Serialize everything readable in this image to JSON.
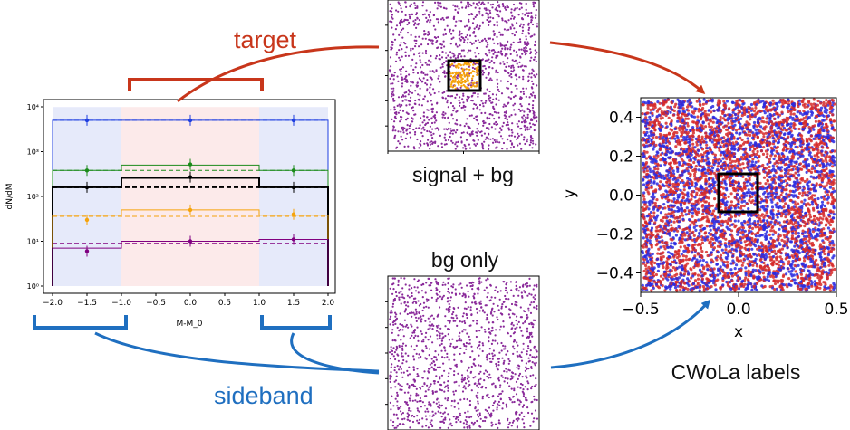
{
  "labels": {
    "target": "target",
    "sideband": "sideband",
    "signal_bg": "signal + bg",
    "bg_only": "bg only",
    "cwola": "CWoLa labels"
  },
  "colors": {
    "target_red": "#c8361b",
    "sideband_blue": "#1f6fc0",
    "scatter_purple": "#8a2a9a",
    "signal_orange": "#f5a30c",
    "label_red": "#d62a2a",
    "label_blue": "#2a2ae0"
  },
  "chart_data": [
    {
      "type": "line",
      "title": "",
      "xlabel": "M-M_0",
      "ylabel": "dN/dM",
      "xlim": [
        -2.0,
        2.0
      ],
      "ylog": true,
      "ylim_exp": [
        0,
        4
      ],
      "x_ticks": [
        "−2.0",
        "−1.5",
        "−1.0",
        "−0.5",
        "0.0",
        "0.5",
        "1.0",
        "1.5",
        "2.0"
      ],
      "y_ticks": [
        "10⁰",
        "10¹",
        "10²",
        "10³",
        "10⁴"
      ],
      "regions": [
        {
          "name": "sideband",
          "x": [
            -2.0,
            -1.0
          ],
          "color": "#dde3f8"
        },
        {
          "name": "target",
          "x": [
            -1.0,
            1.0
          ],
          "color": "#fbe3e3"
        },
        {
          "name": "sideband",
          "x": [
            1.0,
            2.0
          ],
          "color": "#dde3f8"
        }
      ],
      "series": [
        {
          "color": "#1f3fe0",
          "edges": [
            -2.0,
            -1.0,
            1.0,
            2.0
          ],
          "values": [
            5000,
            5000,
            5000
          ],
          "points_x": [
            -1.5,
            0.0,
            1.5
          ],
          "points_y": [
            5000,
            5000,
            5000
          ],
          "width": 1
        },
        {
          "color": "#1a8a1a",
          "edges": [
            -2.0,
            -1.0,
            1.0,
            2.0
          ],
          "values": [
            380,
            500,
            380
          ],
          "points_x": [
            -1.5,
            0.0,
            1.5
          ],
          "points_y": [
            380,
            520,
            380
          ],
          "width": 1
        },
        {
          "color": "#000000",
          "edges": [
            -2.0,
            -1.0,
            1.0,
            2.0
          ],
          "values": [
            160,
            260,
            160
          ],
          "points_x": [
            -1.5,
            0.0,
            1.5
          ],
          "points_y": [
            160,
            270,
            160
          ],
          "width": 2
        },
        {
          "color": "#f5a30c",
          "edges": [
            -2.0,
            -1.0,
            1.0,
            2.0
          ],
          "values": [
            38,
            50,
            38
          ],
          "points_x": [
            -1.5,
            0.0,
            1.5
          ],
          "points_y": [
            30,
            50,
            40
          ],
          "width": 1
        },
        {
          "color": "#800080",
          "edges": [
            -2.0,
            -1.0,
            1.0,
            2.0
          ],
          "values": [
            7,
            10,
            11
          ],
          "points_x": [
            -1.5,
            0.0,
            1.5
          ],
          "points_y": [
            6,
            10,
            11
          ],
          "width": 1
        }
      ],
      "background_dashed": [
        {
          "color": "#1f3fe0",
          "value": 5000
        },
        {
          "color": "#1a8a1a",
          "value": 380
        },
        {
          "color": "#000000",
          "value": 160
        },
        {
          "color": "#f5a30c",
          "value": 36
        },
        {
          "color": "#800080",
          "value": 9
        }
      ]
    },
    {
      "type": "scatter",
      "title": "",
      "xlabel": "x",
      "ylabel": "y",
      "xlim": [
        -0.5,
        0.5
      ],
      "ylim": [
        -0.5,
        0.5
      ],
      "x_ticks": [
        "−0.5",
        "0.0",
        "0.5"
      ],
      "y_ticks": [
        "0.4",
        "0.2",
        "0.0",
        "−0.2",
        "−0.4"
      ],
      "series": [
        {
          "name": "",
          "color": "#d62a2a"
        },
        {
          "name": "",
          "color": "#2a2ae0"
        }
      ],
      "box": {
        "x": [
          -0.1,
          0.1
        ],
        "y": [
          -0.1,
          0.1
        ]
      }
    }
  ]
}
